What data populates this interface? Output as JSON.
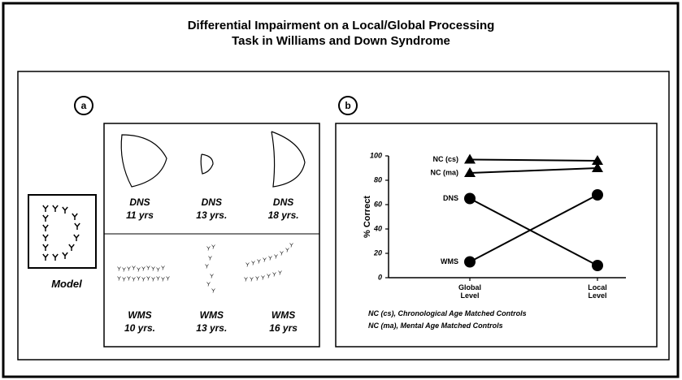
{
  "title": [
    "Differential Impairment on a Local/Global Processing",
    "Task in Williams and Down Syndrome"
  ],
  "panel_a": {
    "label": "a",
    "model": "Model",
    "cells": [
      {
        "group": "DNS",
        "age": "11 yrs"
      },
      {
        "group": "DNS",
        "age": "13 yrs."
      },
      {
        "group": "DNS",
        "age": "18 yrs."
      },
      {
        "group": "WMS",
        "age": "10 yrs."
      },
      {
        "group": "WMS",
        "age": "13 yrs."
      },
      {
        "group": "WMS",
        "age": "16 yrs"
      }
    ]
  },
  "panel_b_label": "b",
  "chart_data": {
    "type": "line",
    "categories": [
      "Global Level",
      "Local Level"
    ],
    "y_label": "% Correct",
    "ylim": [
      0,
      100
    ],
    "yticks": [
      0,
      20,
      40,
      60,
      80,
      100
    ],
    "color": "#000",
    "series": [
      {
        "name": "NC (cs)",
        "marker": "triangle",
        "values": [
          97,
          96
        ]
      },
      {
        "name": "NC (ma)",
        "marker": "triangle",
        "values": [
          86,
          90
        ]
      },
      {
        "name": "DNS",
        "marker": "circle",
        "values": [
          65,
          10
        ]
      },
      {
        "name": "WMS",
        "marker": "circle",
        "values": [
          13,
          68
        ]
      }
    ],
    "notes": [
      "NC (cs), Chronological Age Matched Controls",
      "NC (ma), Mental Age Matched Controls"
    ]
  }
}
